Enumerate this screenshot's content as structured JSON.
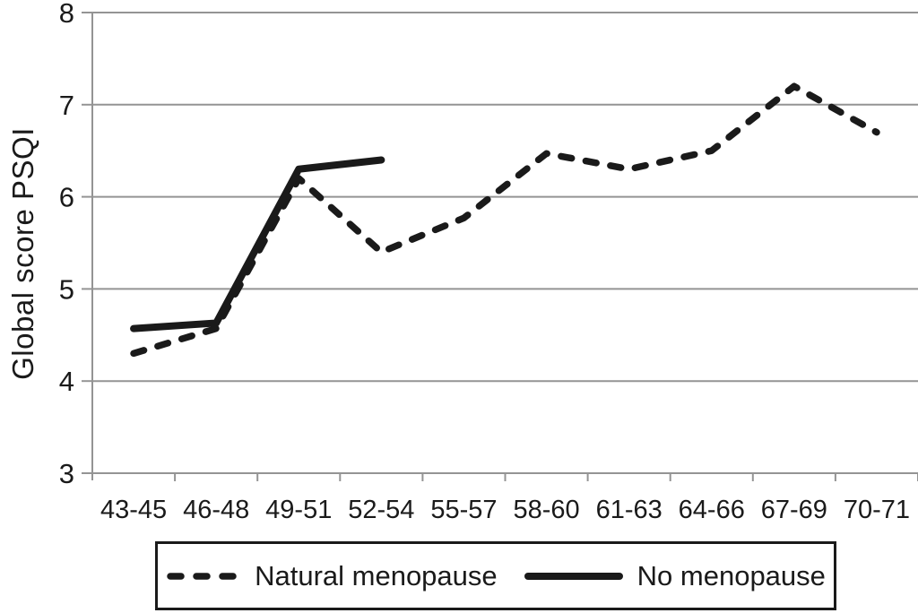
{
  "chart_data": {
    "type": "line",
    "title": "",
    "ylabel": "Global score PSQI",
    "xlabel": "",
    "categories": [
      "43-45",
      "46-48",
      "49-51",
      "52-54",
      "55-57",
      "58-60",
      "61-63",
      "64-66",
      "67-69",
      "70-71"
    ],
    "series": [
      {
        "name": "Natural menopause",
        "style": "dashed",
        "color": "#1a1a1a",
        "values": [
          4.3,
          4.57,
          6.2,
          5.4,
          5.77,
          6.47,
          6.3,
          6.5,
          7.2,
          6.7
        ]
      },
      {
        "name": "No menopause",
        "style": "solid",
        "color": "#1a1a1a",
        "values": [
          4.57,
          4.63,
          6.3,
          6.4
        ]
      }
    ],
    "ylim": [
      3,
      8
    ],
    "yticks": [
      3,
      4,
      5,
      6,
      7,
      8
    ],
    "grid": "horizontal",
    "legend_position": "bottom",
    "colors": {
      "line": "#1a1a1a",
      "grid": "#949494",
      "axis": "#949494",
      "text": "#1a1a1a",
      "background": "#ffffff"
    }
  }
}
